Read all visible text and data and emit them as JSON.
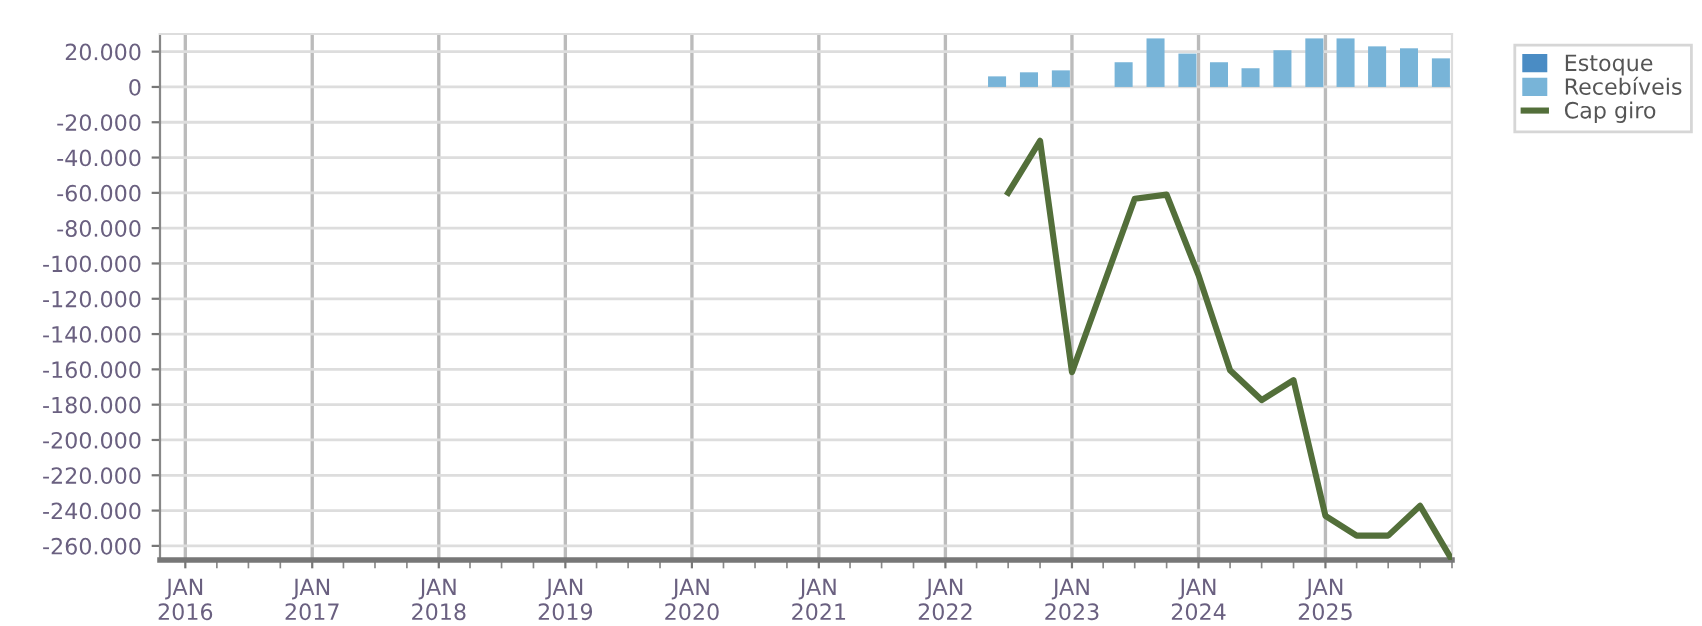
{
  "chart_data": {
    "type": "bar",
    "x": [
      "2022-07",
      "2022-10",
      "2023-01",
      "2023-07",
      "2023-10",
      "2024-01",
      "2024-04",
      "2024-07",
      "2024-10",
      "2025-01",
      "2025-04",
      "2025-07",
      "2025-10",
      "2026-01"
    ],
    "series": [
      {
        "name": "Estoque",
        "color": "#4a8cc4",
        "values": [
          null,
          null,
          null,
          null,
          null,
          null,
          null,
          null,
          null,
          null,
          null,
          null,
          null,
          null
        ]
      },
      {
        "name": "Recebíveis",
        "color": "#78b4d8",
        "values": [
          6000,
          8300,
          9400,
          14000,
          27500,
          18900,
          14000,
          10600,
          20800,
          27500,
          27500,
          23000,
          21900,
          16200
        ]
      },
      {
        "name": "Cap giro",
        "type": "line",
        "color": "#536f3a",
        "values": [
          -60000,
          -30500,
          -161600,
          -63300,
          -61000,
          -106600,
          -160500,
          -177400,
          -166100,
          -243000,
          -254200,
          -254200,
          -237300,
          -268000
        ]
      }
    ],
    "xlim": [
      "2015-10-20",
      "2026-01-01"
    ],
    "xticks": [
      {
        "value": "2016-01",
        "label": "JAN\n2016"
      },
      {
        "value": "2017-01",
        "label": "JAN\n2017"
      },
      {
        "value": "2018-01",
        "label": "JAN\n2018"
      },
      {
        "value": "2019-01",
        "label": "JAN\n2019"
      },
      {
        "value": "2020-01",
        "label": "JAN\n2020"
      },
      {
        "value": "2021-01",
        "label": "JAN\n2021"
      },
      {
        "value": "2022-01",
        "label": "JAN\n2022"
      },
      {
        "value": "2023-01",
        "label": "JAN\n2023"
      },
      {
        "value": "2024-01",
        "label": "JAN\n2024"
      },
      {
        "value": "2025-01",
        "label": "JAN\n2025"
      }
    ],
    "ylim": [
      -268000,
      30000
    ],
    "yticks": [
      {
        "value": 20000,
        "label": "20.000"
      },
      {
        "value": 0,
        "label": "0"
      },
      {
        "value": -20000,
        "label": "-20.000"
      },
      {
        "value": -40000,
        "label": "-40.000"
      },
      {
        "value": -60000,
        "label": "-60.000"
      },
      {
        "value": -80000,
        "label": "-80.000"
      },
      {
        "value": -100000,
        "label": "-100.000"
      },
      {
        "value": -120000,
        "label": "-120.000"
      },
      {
        "value": -140000,
        "label": "-140.000"
      },
      {
        "value": -160000,
        "label": "-160.000"
      },
      {
        "value": -180000,
        "label": "-180.000"
      },
      {
        "value": -200000,
        "label": "-200.000"
      },
      {
        "value": -220000,
        "label": "-220.000"
      },
      {
        "value": -240000,
        "label": "-240.000"
      },
      {
        "value": -260000,
        "label": "-260.000"
      }
    ],
    "grid": true,
    "legend": "top right"
  }
}
